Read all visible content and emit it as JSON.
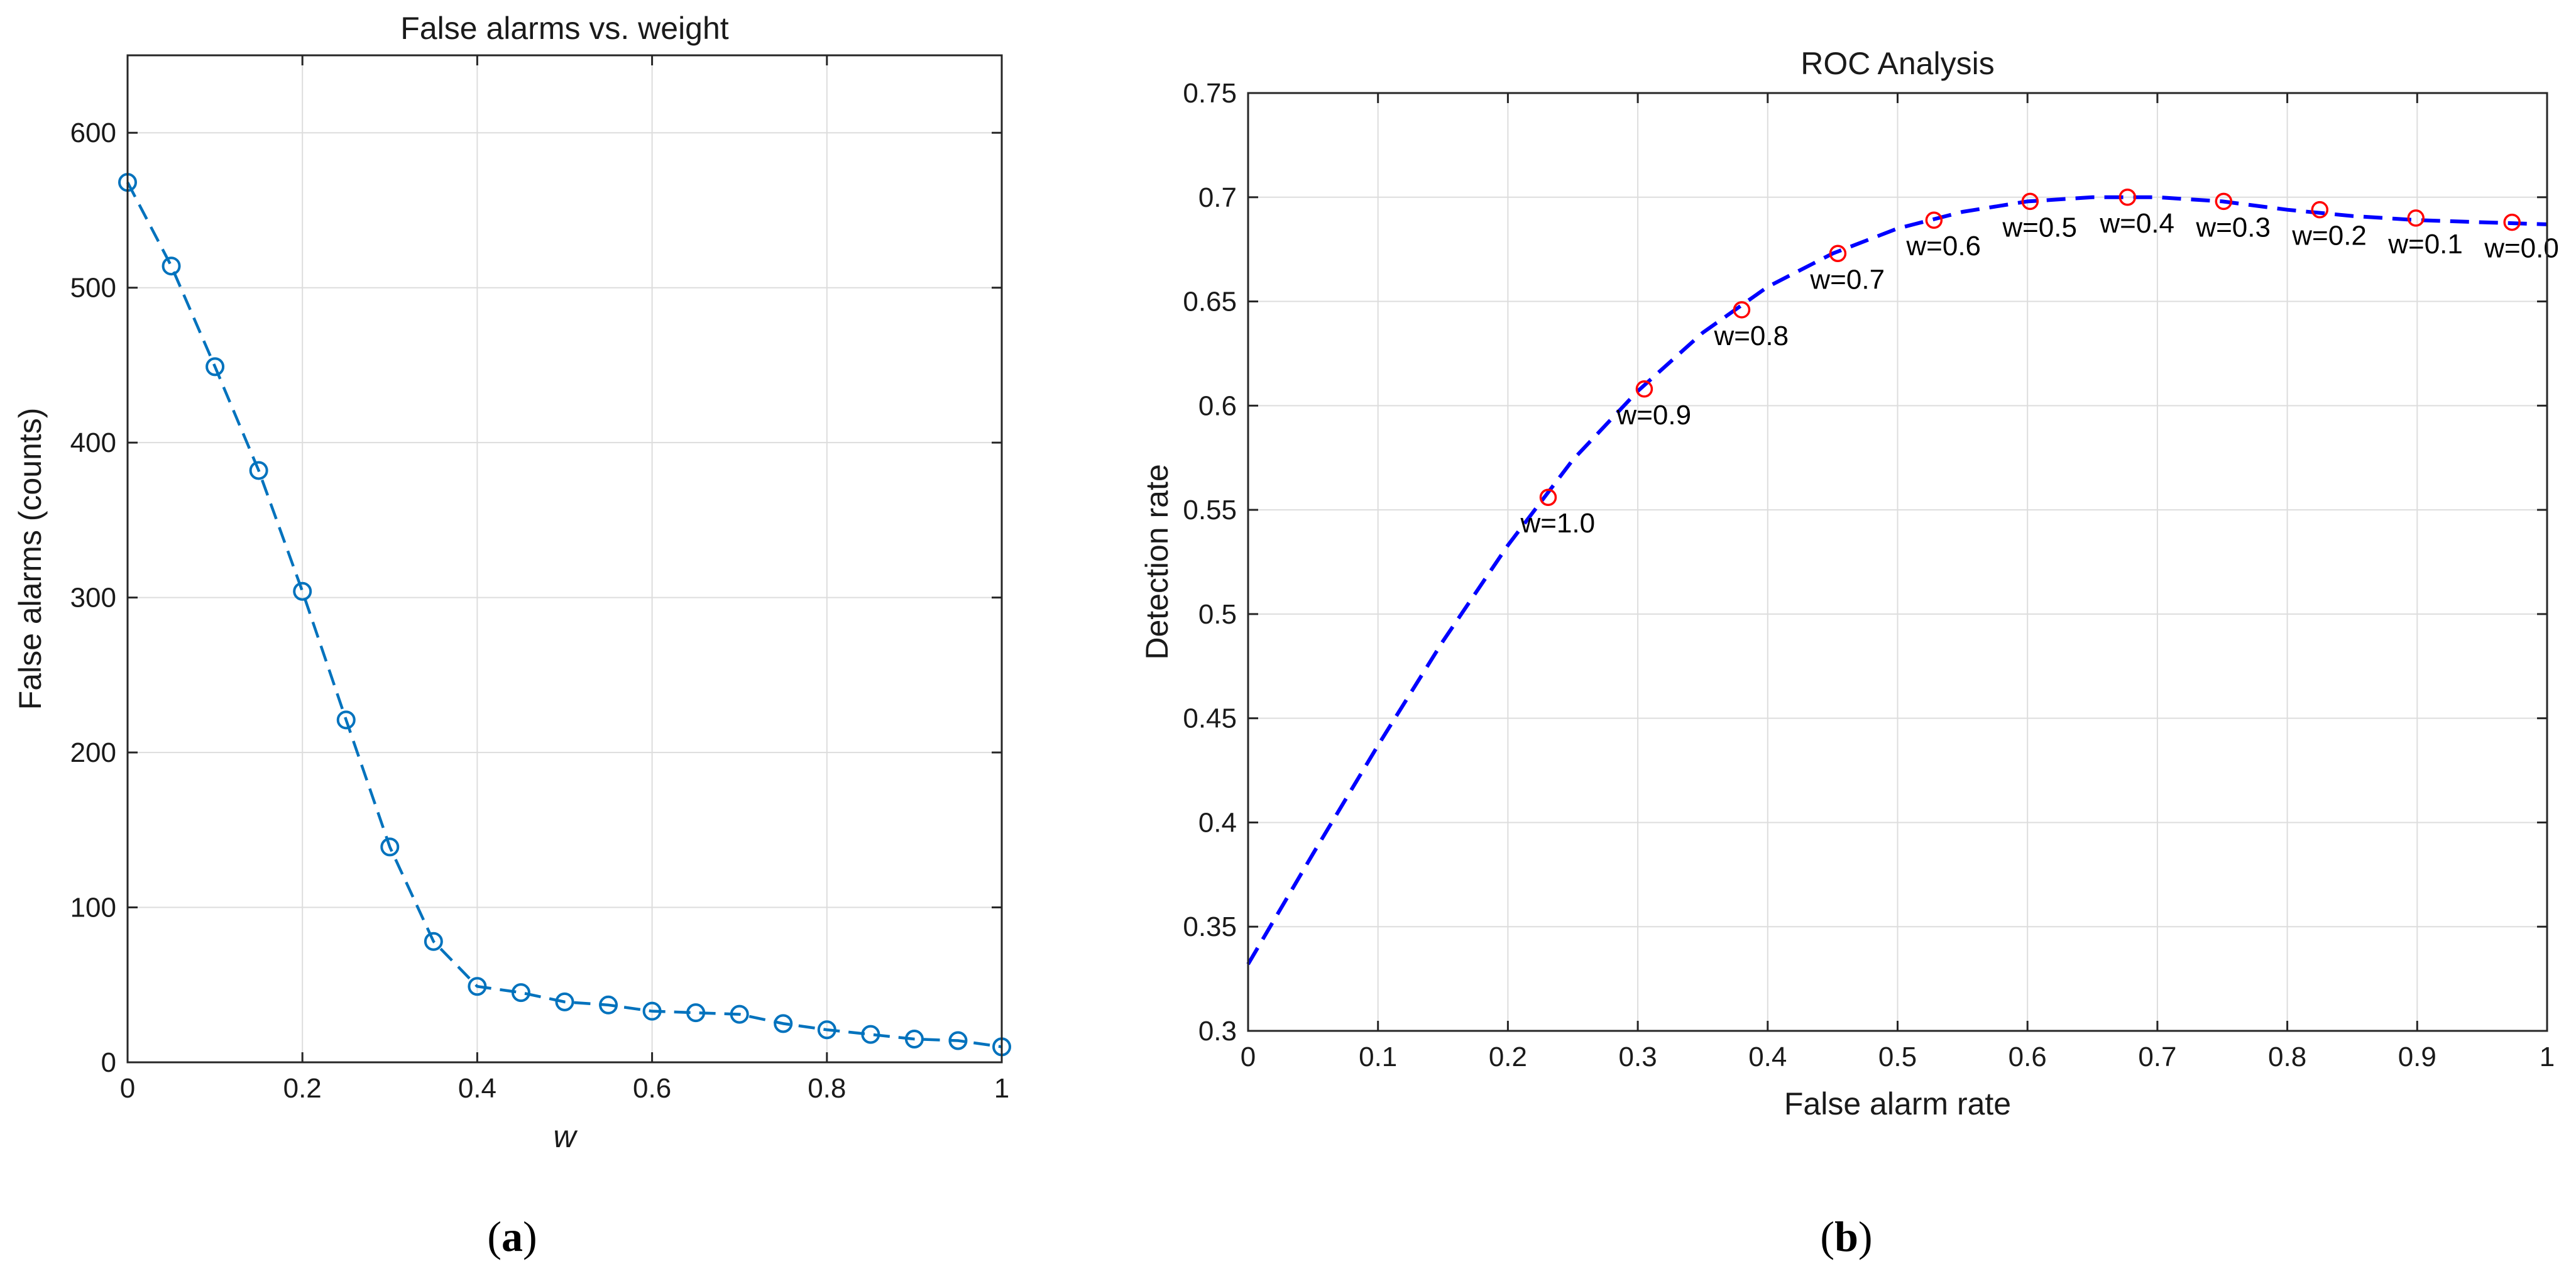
{
  "colors": {
    "left_series": "#0072BD",
    "right_curve": "#0000FF",
    "right_markers": "#FF0000",
    "grid": "#DDDDDD",
    "axes": "#262626"
  },
  "chart_data": [
    {
      "type": "line",
      "title": "False alarms vs. weight",
      "xlabel": "w",
      "ylabel": "False alarms (counts)",
      "xlim": [
        0,
        1
      ],
      "ylim": [
        0,
        650
      ],
      "xticks": [
        0,
        0.2,
        0.4,
        0.6,
        0.8,
        1
      ],
      "xtick_labels": [
        "0",
        "0.2",
        "0.4",
        "0.6",
        "0.8",
        "1"
      ],
      "yticks": [
        0,
        100,
        200,
        300,
        400,
        500,
        600
      ],
      "ytick_labels": [
        "0",
        "100",
        "200",
        "300",
        "400",
        "500",
        "600"
      ],
      "grid": true,
      "series": [
        {
          "name": "False alarms",
          "marker": "circle",
          "linestyle": "dashed",
          "x": [
            0,
            0.05,
            0.1,
            0.15,
            0.2,
            0.25,
            0.3,
            0.35,
            0.4,
            0.45,
            0.5,
            0.55,
            0.6,
            0.65,
            0.7,
            0.75,
            0.8,
            0.85,
            0.9,
            0.95,
            1.0
          ],
          "y": [
            568,
            514,
            449,
            382,
            304,
            221,
            139,
            78,
            49,
            45,
            39,
            37,
            33,
            32,
            31,
            25,
            21,
            18,
            15,
            14,
            10
          ]
        }
      ],
      "caption": "a"
    },
    {
      "type": "line",
      "title": "ROC Analysis",
      "xlabel": "False alarm rate",
      "ylabel": "Detection rate",
      "xlim": [
        0,
        1
      ],
      "ylim": [
        0.3,
        0.75
      ],
      "xticks": [
        0,
        0.1,
        0.2,
        0.3,
        0.4,
        0.5,
        0.6,
        0.7,
        0.8,
        0.9,
        1
      ],
      "xtick_labels": [
        "0",
        "0.1",
        "0.2",
        "0.3",
        "0.4",
        "0.5",
        "0.6",
        "0.7",
        "0.8",
        "0.9",
        "1"
      ],
      "yticks": [
        0.3,
        0.35,
        0.4,
        0.45,
        0.5,
        0.55,
        0.6,
        0.65,
        0.7,
        0.75
      ],
      "ytick_labels": [
        "0.3",
        "0.35",
        "0.4",
        "0.45",
        "0.5",
        "0.55",
        "0.6",
        "0.65",
        "0.7",
        "0.75"
      ],
      "grid": true,
      "curve": {
        "name": "ROC curve",
        "linestyle": "dashed",
        "x": [
          0,
          0.05,
          0.1,
          0.15,
          0.2,
          0.25,
          0.3,
          0.35,
          0.4,
          0.45,
          0.5,
          0.55,
          0.6,
          0.65,
          0.7,
          0.75,
          0.8,
          0.85,
          0.9,
          0.95,
          1.0
        ],
        "y": [
          0.332,
          0.385,
          0.437,
          0.487,
          0.533,
          0.574,
          0.607,
          0.635,
          0.657,
          0.673,
          0.685,
          0.693,
          0.698,
          0.7,
          0.7,
          0.698,
          0.694,
          0.691,
          0.689,
          0.688,
          0.687
        ]
      },
      "points": [
        {
          "label": "w=1.0",
          "x": 0.231,
          "y": 0.556
        },
        {
          "label": "w=0.9",
          "x": 0.305,
          "y": 0.608
        },
        {
          "label": "w=0.8",
          "x": 0.38,
          "y": 0.646
        },
        {
          "label": "w=0.7",
          "x": 0.454,
          "y": 0.673
        },
        {
          "label": "w=0.6",
          "x": 0.528,
          "y": 0.689
        },
        {
          "label": "w=0.5",
          "x": 0.602,
          "y": 0.698
        },
        {
          "label": "w=0.4",
          "x": 0.677,
          "y": 0.7
        },
        {
          "label": "w=0.3",
          "x": 0.751,
          "y": 0.698
        },
        {
          "label": "w=0.2",
          "x": 0.825,
          "y": 0.694
        },
        {
          "label": "w=0.1",
          "x": 0.899,
          "y": 0.69
        },
        {
          "label": "w=0.0",
          "x": 0.973,
          "y": 0.688
        }
      ],
      "caption": "b"
    }
  ]
}
